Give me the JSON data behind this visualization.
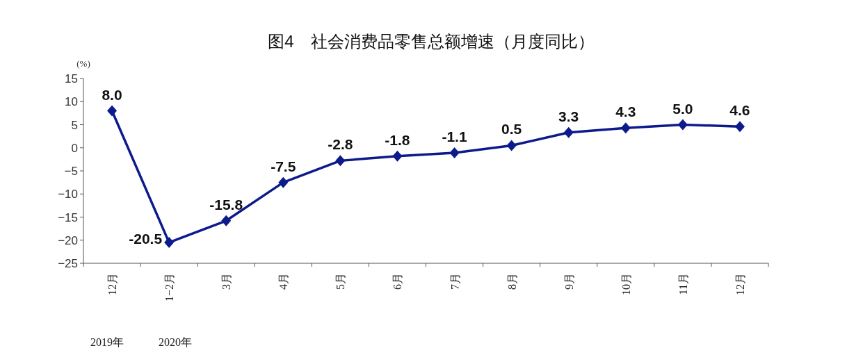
{
  "chart_data": {
    "type": "line",
    "title": "图4　社会消费品零售总额增速（月度同比）",
    "ylabel": "(%)",
    "categories": [
      "12月",
      "1−2月",
      "3月",
      "4月",
      "5月",
      "6月",
      "7月",
      "8月",
      "9月",
      "10月",
      "11月",
      "12月"
    ],
    "series": [
      {
        "color": "#0d1a8c",
        "values": [
          8.0,
          -20.5,
          -15.8,
          -7.5,
          -2.8,
          -1.8,
          -1.1,
          0.5,
          3.3,
          4.3,
          5.0,
          4.6
        ],
        "value_labels": [
          "8.0",
          "-20.5",
          "-15.8",
          "-7.5",
          "-2.8",
          "-1.8",
          "-1.1",
          "0.5",
          "3.3",
          "4.3",
          "5.0",
          "4.6"
        ]
      }
    ],
    "ylim": [
      -25,
      15
    ],
    "yticks": [
      -25,
      -20,
      -15,
      -10,
      -5,
      0,
      5,
      10,
      15
    ],
    "marker": "diamond",
    "grid": false,
    "annotations": [
      "2019年",
      "2020年"
    ]
  }
}
